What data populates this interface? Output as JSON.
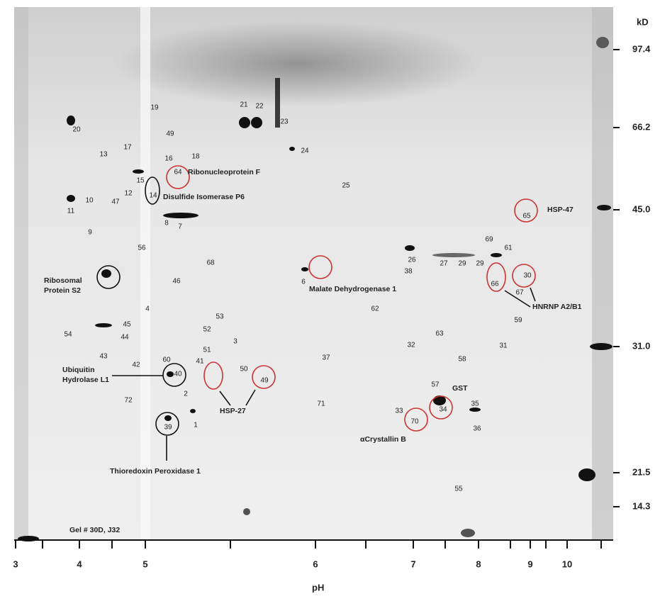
{
  "gel_id": "Gel # 30D, J32",
  "axes": {
    "kd_unit": "kD",
    "kd_ticks": [
      "97.4",
      "66.2",
      "45.0",
      "31.0",
      "21.5",
      "14.3"
    ],
    "ph_label": "pH",
    "ph_ticks": [
      "3",
      "4",
      "5",
      "6",
      "7",
      "8",
      "9",
      "10"
    ]
  },
  "spots": [
    "19",
    "20",
    "21",
    "22",
    "23",
    "49",
    "24",
    "13",
    "17",
    "16",
    "18",
    "64",
    "15",
    "14",
    "12",
    "25",
    "10",
    "47",
    "11",
    "8",
    "7",
    "9",
    "65",
    "56",
    "69",
    "61",
    "26",
    "27",
    "29",
    "29",
    "38",
    "68",
    "30",
    "6",
    "46",
    "66",
    "67",
    "4",
    "62",
    "53",
    "59",
    "45",
    "52",
    "54",
    "44",
    "63",
    "3",
    "32",
    "31",
    "51",
    "43",
    "60",
    "37",
    "58",
    "42",
    "41",
    "50",
    "40",
    "49",
    "57",
    "2",
    "72",
    "71",
    "35",
    "33",
    "34",
    "70",
    "36",
    "39",
    "1",
    "55"
  ],
  "annotations": [
    [
      "Ribonucleoprotein F"
    ],
    [
      "Disulfide Isomerase P6"
    ],
    [
      "HSP-47"
    ],
    [
      "Ribosomal",
      "Protein S2"
    ],
    [
      "Malate Dehydrogenase 1"
    ],
    [
      "HNRNP A2/B1"
    ],
    [
      "Ubiquitin",
      "Hydrolase L1"
    ],
    [
      "GST"
    ],
    [
      "HSP-27"
    ],
    [
      "αCrystallin B"
    ],
    [
      "Thioredoxin Peroxidase 1"
    ]
  ]
}
